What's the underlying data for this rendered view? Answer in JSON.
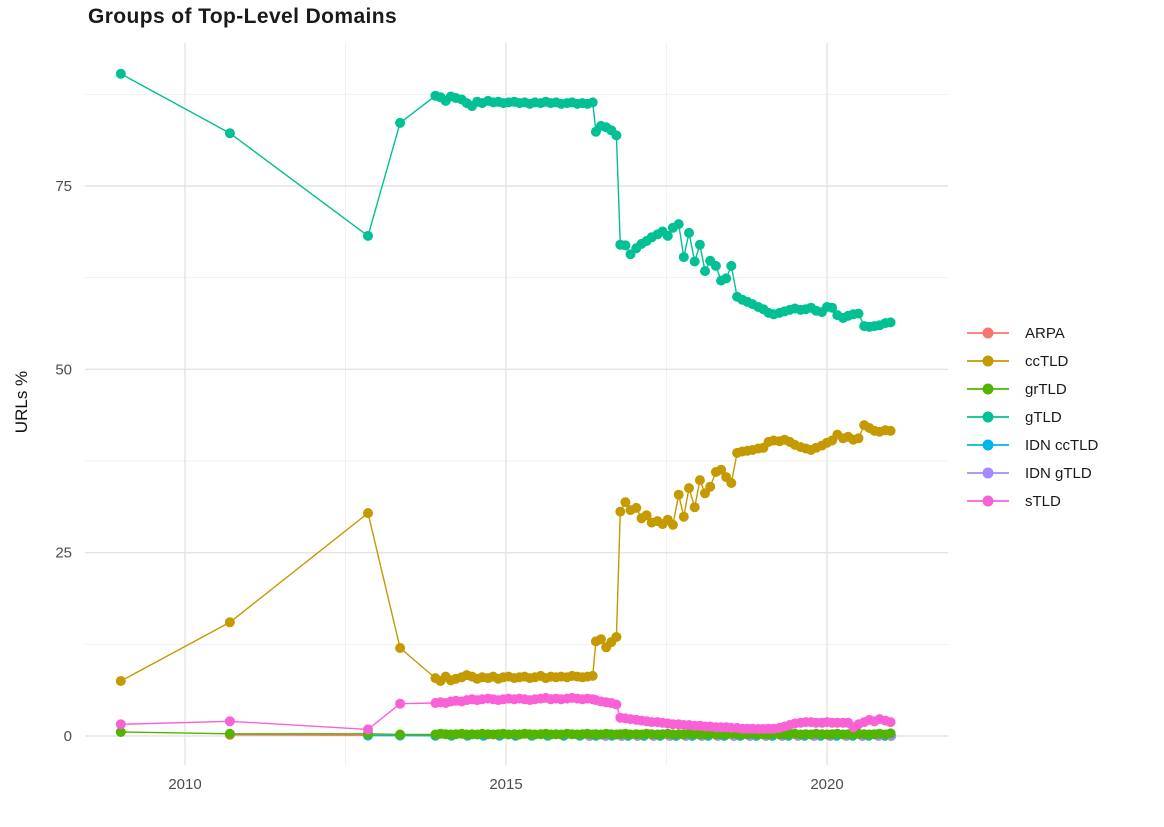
{
  "title": "Groups of Top-Level Domains",
  "chart_data": {
    "type": "line",
    "title": "Groups of Top-Level Domains",
    "xlabel": "",
    "ylabel": "URLs %",
    "x_ticks": [
      2010,
      2015,
      2020
    ],
    "y_ticks": [
      0,
      25,
      50,
      75
    ],
    "x_minor_gridlines": [
      2012.5,
      2017.5
    ],
    "y_minor_gridlines": [
      12.5,
      37.5,
      62.5,
      87.5
    ],
    "xlim": [
      2008.5,
      2021.9
    ],
    "ylim": [
      -4,
      94.5
    ],
    "grid": true,
    "legend_position": "right",
    "draw_order": [
      "ARPA",
      "IDN ccTLD",
      "IDN gTLD",
      "grTLD",
      "ccTLD",
      "gTLD",
      "sTLD"
    ],
    "series": [
      {
        "name": "ARPA",
        "color": "#F8766D",
        "x": [
          2010.7,
          2012.85,
          2013.35,
          2013.9,
          2014.15,
          2014.4,
          2014.65,
          2014.9,
          2015.15,
          2015.4,
          2015.65,
          2015.9,
          2016.15,
          2016.4,
          2016.65,
          2016.9,
          2017.15,
          2017.4,
          2017.65,
          2017.9,
          2018.15,
          2018.4,
          2018.65,
          2018.9,
          2019.15,
          2019.4,
          2019.65,
          2019.9,
          2020.15,
          2020.4,
          2020.65,
          2020.9
        ],
        "y": [
          0.15,
          0.1,
          0.08,
          0.05,
          0.05,
          0.05,
          0.05,
          0.05,
          0.05,
          0.05,
          0.05,
          0.05,
          0.05,
          0.05,
          0.05,
          0.04,
          0.04,
          0.04,
          0.04,
          0.04,
          0.04,
          0.04,
          0.04,
          0.04,
          0.04,
          0.04,
          0.04,
          0.04,
          0.04,
          0.04,
          0.04,
          0.04
        ]
      },
      {
        "name": "ccTLD",
        "color": "#C49A00",
        "x": [
          2009.0,
          2010.7,
          2012.85,
          2013.35,
          2013.9,
          2013.98,
          2014.06,
          2014.14,
          2014.22,
          2014.31,
          2014.39,
          2014.47,
          2014.55,
          2014.63,
          2014.72,
          2014.8,
          2014.88,
          2014.96,
          2015.04,
          2015.13,
          2015.21,
          2015.29,
          2015.37,
          2015.45,
          2015.54,
          2015.62,
          2015.7,
          2015.78,
          2015.86,
          2015.95,
          2016.03,
          2016.11,
          2016.19,
          2016.27,
          2016.35,
          2016.4,
          2016.48,
          2016.56,
          2016.64,
          2016.72,
          2016.78,
          2016.86,
          2016.94,
          2017.03,
          2017.11,
          2017.19,
          2017.27,
          2017.36,
          2017.44,
          2017.52,
          2017.6,
          2017.69,
          2017.77,
          2017.85,
          2017.94,
          2018.02,
          2018.1,
          2018.18,
          2018.27,
          2018.35,
          2018.43,
          2018.51,
          2018.6,
          2018.68,
          2018.76,
          2018.84,
          2018.93,
          2019.01,
          2019.09,
          2019.17,
          2019.26,
          2019.34,
          2019.42,
          2019.5,
          2019.59,
          2019.67,
          2019.75,
          2019.83,
          2019.92,
          2020.0,
          2020.08,
          2020.16,
          2020.25,
          2020.33,
          2020.41,
          2020.49,
          2020.58,
          2020.66,
          2020.74,
          2020.82,
          2020.91,
          2020.99
        ],
        "y": [
          7.5,
          15.5,
          30.4,
          12.0,
          7.9,
          7.5,
          8.1,
          7.6,
          7.8,
          8.0,
          8.3,
          8.1,
          7.8,
          8.0,
          7.9,
          8.1,
          7.8,
          8.0,
          8.1,
          7.9,
          8.0,
          8.1,
          7.9,
          8.0,
          8.2,
          7.9,
          8.1,
          8.0,
          8.1,
          8.0,
          8.2,
          8.1,
          8.0,
          8.1,
          8.2,
          12.9,
          13.2,
          12.1,
          12.8,
          13.5,
          30.6,
          31.9,
          30.8,
          31.1,
          29.7,
          30.1,
          29.1,
          29.3,
          28.9,
          29.5,
          28.8,
          32.9,
          29.9,
          33.8,
          31.2,
          34.9,
          33.1,
          34.0,
          36.0,
          36.3,
          35.3,
          34.5,
          38.6,
          38.8,
          38.9,
          39.0,
          39.2,
          39.3,
          40.1,
          40.3,
          40.2,
          40.4,
          40.1,
          39.7,
          39.4,
          39.2,
          39.0,
          39.3,
          39.6,
          40.0,
          40.3,
          41.1,
          40.6,
          40.8,
          40.4,
          40.6,
          42.4,
          42.0,
          41.6,
          41.5,
          41.7,
          41.6
        ]
      },
      {
        "name": "grTLD",
        "color": "#53B400",
        "x": [
          2009.0,
          2010.7,
          2012.85,
          2013.35,
          2013.9,
          2013.98,
          2014.06,
          2014.14,
          2014.22,
          2014.31,
          2014.39,
          2014.47,
          2014.55,
          2014.63,
          2014.72,
          2014.8,
          2014.88,
          2014.96,
          2015.04,
          2015.13,
          2015.21,
          2015.29,
          2015.37,
          2015.45,
          2015.54,
          2015.62,
          2015.7,
          2015.78,
          2015.86,
          2015.95,
          2016.03,
          2016.11,
          2016.19,
          2016.27,
          2016.35,
          2016.4,
          2016.48,
          2016.56,
          2016.64,
          2016.72,
          2016.78,
          2016.86,
          2016.94,
          2017.03,
          2017.11,
          2017.19,
          2017.27,
          2017.36,
          2017.44,
          2017.52,
          2017.6,
          2017.69,
          2017.77,
          2017.85,
          2017.94,
          2018.02,
          2018.1,
          2018.18,
          2018.27,
          2018.35,
          2018.43,
          2018.51,
          2018.6,
          2018.68,
          2018.76,
          2018.84,
          2018.93,
          2019.01,
          2019.09,
          2019.17,
          2019.26,
          2019.34,
          2019.42,
          2019.5,
          2019.59,
          2019.67,
          2019.75,
          2019.83,
          2019.92,
          2020.0,
          2020.08,
          2020.16,
          2020.25,
          2020.33,
          2020.41,
          2020.49,
          2020.58,
          2020.66,
          2020.74,
          2020.82,
          2020.91,
          2020.99
        ],
        "y": [
          0.55,
          0.3,
          0.3,
          0.2,
          0.2,
          0.3,
          0.25,
          0.2,
          0.25,
          0.3,
          0.2,
          0.25,
          0.2,
          0.3,
          0.25,
          0.2,
          0.25,
          0.3,
          0.2,
          0.25,
          0.2,
          0.3,
          0.25,
          0.2,
          0.25,
          0.3,
          0.2,
          0.25,
          0.2,
          0.3,
          0.25,
          0.2,
          0.25,
          0.3,
          0.2,
          0.25,
          0.2,
          0.3,
          0.25,
          0.2,
          0.25,
          0.3,
          0.2,
          0.25,
          0.2,
          0.3,
          0.25,
          0.2,
          0.25,
          0.3,
          0.2,
          0.25,
          0.2,
          0.3,
          0.25,
          0.2,
          0.25,
          0.3,
          0.2,
          0.25,
          0.2,
          0.3,
          0.25,
          0.2,
          0.25,
          0.3,
          0.2,
          0.25,
          0.2,
          0.3,
          0.25,
          0.2,
          0.25,
          0.3,
          0.2,
          0.25,
          0.2,
          0.3,
          0.25,
          0.2,
          0.25,
          0.3,
          0.2,
          0.25,
          0.2,
          0.3,
          0.25,
          0.2,
          0.25,
          0.3,
          0.2,
          0.35
        ]
      },
      {
        "name": "gTLD",
        "color": "#00C094",
        "x": [
          2009.0,
          2010.7,
          2012.85,
          2013.35,
          2013.9,
          2013.98,
          2014.06,
          2014.14,
          2014.22,
          2014.31,
          2014.39,
          2014.47,
          2014.55,
          2014.63,
          2014.72,
          2014.8,
          2014.88,
          2014.96,
          2015.04,
          2015.13,
          2015.21,
          2015.29,
          2015.37,
          2015.45,
          2015.54,
          2015.62,
          2015.7,
          2015.78,
          2015.86,
          2015.95,
          2016.03,
          2016.11,
          2016.19,
          2016.27,
          2016.35,
          2016.4,
          2016.48,
          2016.56,
          2016.64,
          2016.72,
          2016.78,
          2016.86,
          2016.94,
          2017.03,
          2017.11,
          2017.19,
          2017.27,
          2017.36,
          2017.44,
          2017.52,
          2017.6,
          2017.69,
          2017.77,
          2017.85,
          2017.94,
          2018.02,
          2018.1,
          2018.18,
          2018.27,
          2018.35,
          2018.43,
          2018.51,
          2018.6,
          2018.68,
          2018.76,
          2018.84,
          2018.93,
          2019.01,
          2019.09,
          2019.17,
          2019.26,
          2019.34,
          2019.42,
          2019.5,
          2019.59,
          2019.67,
          2019.75,
          2019.83,
          2019.92,
          2020.0,
          2020.08,
          2020.16,
          2020.25,
          2020.33,
          2020.41,
          2020.49,
          2020.58,
          2020.66,
          2020.74,
          2020.82,
          2020.91,
          2020.99
        ],
        "y": [
          90.3,
          82.2,
          68.2,
          83.6,
          87.3,
          87.1,
          86.6,
          87.2,
          87.0,
          86.8,
          86.3,
          85.9,
          86.5,
          86.3,
          86.6,
          86.4,
          86.5,
          86.3,
          86.4,
          86.5,
          86.3,
          86.4,
          86.2,
          86.4,
          86.3,
          86.5,
          86.3,
          86.4,
          86.2,
          86.3,
          86.4,
          86.2,
          86.3,
          86.2,
          86.4,
          82.4,
          83.2,
          83.0,
          82.6,
          81.9,
          67.0,
          66.9,
          65.7,
          66.5,
          67.1,
          67.5,
          68.0,
          68.4,
          68.8,
          68.2,
          69.3,
          69.8,
          65.3,
          68.6,
          64.7,
          67.0,
          63.4,
          64.8,
          64.1,
          62.1,
          62.4,
          64.1,
          59.9,
          59.5,
          59.2,
          58.9,
          58.5,
          58.2,
          57.7,
          57.5,
          57.7,
          57.9,
          58.1,
          58.3,
          58.1,
          58.2,
          58.4,
          58.0,
          57.8,
          58.5,
          58.4,
          57.4,
          57.0,
          57.3,
          57.5,
          57.6,
          55.9,
          55.8,
          55.9,
          56.0,
          56.3,
          56.4
        ]
      },
      {
        "name": "IDN ccTLD",
        "color": "#00B6EB",
        "x": [
          2012.85,
          2013.35,
          2013.9,
          2014.15,
          2014.4,
          2014.65,
          2014.9,
          2015.15,
          2015.4,
          2015.65,
          2015.9,
          2016.15,
          2016.4,
          2016.65,
          2016.9,
          2017.15,
          2017.4,
          2017.65,
          2017.9,
          2018.15,
          2018.4,
          2018.65,
          2018.9,
          2019.15,
          2019.4,
          2019.65,
          2019.9,
          2020.15,
          2020.4,
          2020.65,
          2020.9
        ],
        "y": [
          0.05,
          0.05,
          0.04,
          0.04,
          0.04,
          0.04,
          0.04,
          0.04,
          0.04,
          0.04,
          0.04,
          0.04,
          0.04,
          0.04,
          0.04,
          0.04,
          0.04,
          0.04,
          0.04,
          0.04,
          0.04,
          0.04,
          0.04,
          0.04,
          0.04,
          0.04,
          0.04,
          0.04,
          0.04,
          0.04,
          0.04
        ]
      },
      {
        "name": "IDN gTLD",
        "color": "#A58AFF",
        "x": [
          2016.3,
          2016.55,
          2016.8,
          2017.05,
          2017.3,
          2017.55,
          2017.8,
          2018.05,
          2018.3,
          2018.55,
          2018.8,
          2019.05,
          2019.3,
          2019.55,
          2019.8,
          2020.05,
          2020.3,
          2020.55,
          2020.8,
          2021.0
        ],
        "y": [
          0.0,
          0.0,
          0.0,
          0.0,
          0.0,
          0.0,
          0.0,
          0.0,
          0.0,
          0.0,
          0.0,
          0.0,
          0.0,
          0.0,
          0.0,
          0.0,
          0.0,
          0.0,
          0.0,
          0.0
        ]
      },
      {
        "name": "sTLD",
        "color": "#FB61D7",
        "x": [
          2009.0,
          2010.7,
          2012.85,
          2013.35,
          2013.9,
          2013.98,
          2014.06,
          2014.14,
          2014.22,
          2014.31,
          2014.39,
          2014.47,
          2014.55,
          2014.63,
          2014.72,
          2014.8,
          2014.88,
          2014.96,
          2015.04,
          2015.13,
          2015.21,
          2015.29,
          2015.37,
          2015.45,
          2015.54,
          2015.62,
          2015.7,
          2015.78,
          2015.86,
          2015.95,
          2016.03,
          2016.11,
          2016.19,
          2016.27,
          2016.35,
          2016.4,
          2016.48,
          2016.56,
          2016.64,
          2016.72,
          2016.78,
          2016.86,
          2016.94,
          2017.03,
          2017.11,
          2017.19,
          2017.27,
          2017.36,
          2017.44,
          2017.52,
          2017.6,
          2017.69,
          2017.77,
          2017.85,
          2017.94,
          2018.02,
          2018.1,
          2018.18,
          2018.27,
          2018.35,
          2018.43,
          2018.51,
          2018.6,
          2018.68,
          2018.76,
          2018.84,
          2018.93,
          2019.01,
          2019.09,
          2019.17,
          2019.26,
          2019.34,
          2019.42,
          2019.5,
          2019.59,
          2019.67,
          2019.75,
          2019.83,
          2019.92,
          2020.0,
          2020.08,
          2020.16,
          2020.25,
          2020.33,
          2020.41,
          2020.49,
          2020.58,
          2020.66,
          2020.74,
          2020.82,
          2020.91,
          2020.99
        ],
        "y": [
          1.6,
          2.0,
          0.9,
          4.4,
          4.5,
          4.6,
          4.5,
          4.7,
          4.8,
          4.7,
          4.9,
          5.0,
          4.9,
          5.0,
          5.1,
          5.0,
          4.9,
          5.0,
          5.1,
          5.0,
          5.1,
          5.0,
          4.9,
          5.0,
          5.1,
          5.2,
          5.0,
          5.1,
          5.0,
          5.1,
          5.2,
          5.1,
          5.0,
          5.1,
          5.0,
          4.9,
          4.7,
          4.6,
          4.5,
          4.3,
          2.5,
          2.4,
          2.3,
          2.2,
          2.1,
          2.0,
          1.9,
          1.9,
          1.8,
          1.7,
          1.6,
          1.6,
          1.5,
          1.5,
          1.4,
          1.4,
          1.3,
          1.3,
          1.2,
          1.2,
          1.2,
          1.1,
          1.1,
          1.0,
          1.0,
          1.0,
          0.95,
          0.95,
          1.0,
          1.0,
          1.1,
          1.3,
          1.5,
          1.7,
          1.8,
          1.9,
          1.9,
          1.8,
          1.8,
          1.9,
          1.8,
          1.8,
          1.8,
          1.8,
          1.2,
          1.6,
          1.9,
          2.2,
          2.0,
          2.3,
          2.1,
          1.9
        ]
      }
    ]
  }
}
